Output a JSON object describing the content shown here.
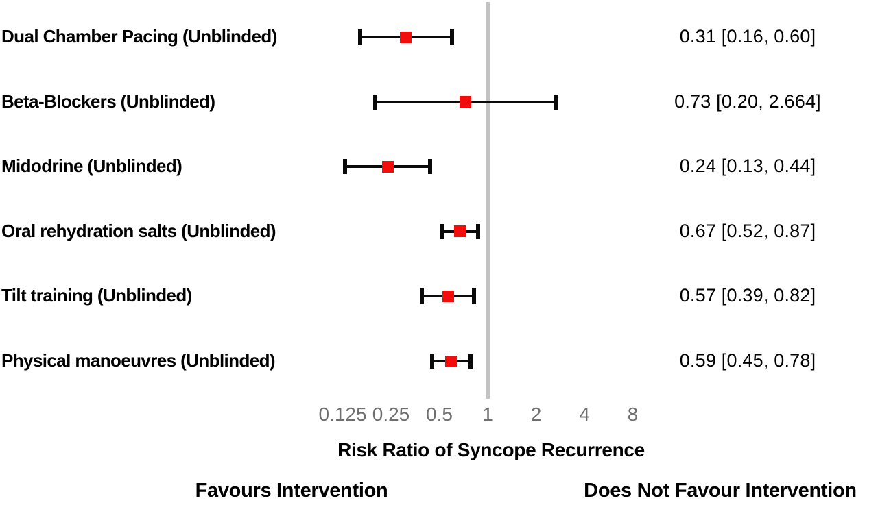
{
  "chart_data": {
    "type": "forest",
    "x_scale": "log2",
    "x_ticks": [
      0.125,
      0.25,
      0.5,
      1,
      2,
      4,
      8
    ],
    "x_tick_labels": [
      "0.125",
      "0.25",
      "0.5",
      "1",
      "2",
      "4",
      "8"
    ],
    "reference_value": 1,
    "xlabel": "Risk Ratio of Syncope Recurrence",
    "legend_position": "none",
    "grid": false,
    "rows": [
      {
        "label": "Dual Chamber Pacing (Unblinded)",
        "estimate": 0.31,
        "ci_low": 0.16,
        "ci_high": 0.6,
        "value_text": "0.31 [0.16, 0.60]"
      },
      {
        "label": "Beta-Blockers (Unblinded)",
        "estimate": 0.73,
        "ci_low": 0.2,
        "ci_high": 2.664,
        "value_text": "0.73 [0.20, 2.664]"
      },
      {
        "label": "Midodrine (Unblinded)",
        "estimate": 0.24,
        "ci_low": 0.13,
        "ci_high": 0.44,
        "value_text": "0.24 [0.13, 0.44]"
      },
      {
        "label": "Oral rehydration salts (Unblinded)",
        "estimate": 0.67,
        "ci_low": 0.52,
        "ci_high": 0.87,
        "value_text": "0.67 [0.52, 0.87]"
      },
      {
        "label": "Tilt training (Unblinded)",
        "estimate": 0.57,
        "ci_low": 0.39,
        "ci_high": 0.82,
        "value_text": "0.57 [0.39, 0.82]"
      },
      {
        "label": "Physical manoeuvres (Unblinded)",
        "estimate": 0.59,
        "ci_low": 0.45,
        "ci_high": 0.78,
        "value_text": "0.59 [0.45, 0.78]"
      }
    ],
    "annotations": {
      "left": "Favours Intervention",
      "right": "Does Not Favour Intervention"
    },
    "marker": {
      "shape": "square",
      "color": "#f20d0d"
    },
    "colors": {
      "ci_line": "#0a0a0a",
      "reference_line": "#c3c3c3",
      "tick_label": "#6f6f6f",
      "text": "#000000",
      "background": "#ffffff"
    }
  }
}
